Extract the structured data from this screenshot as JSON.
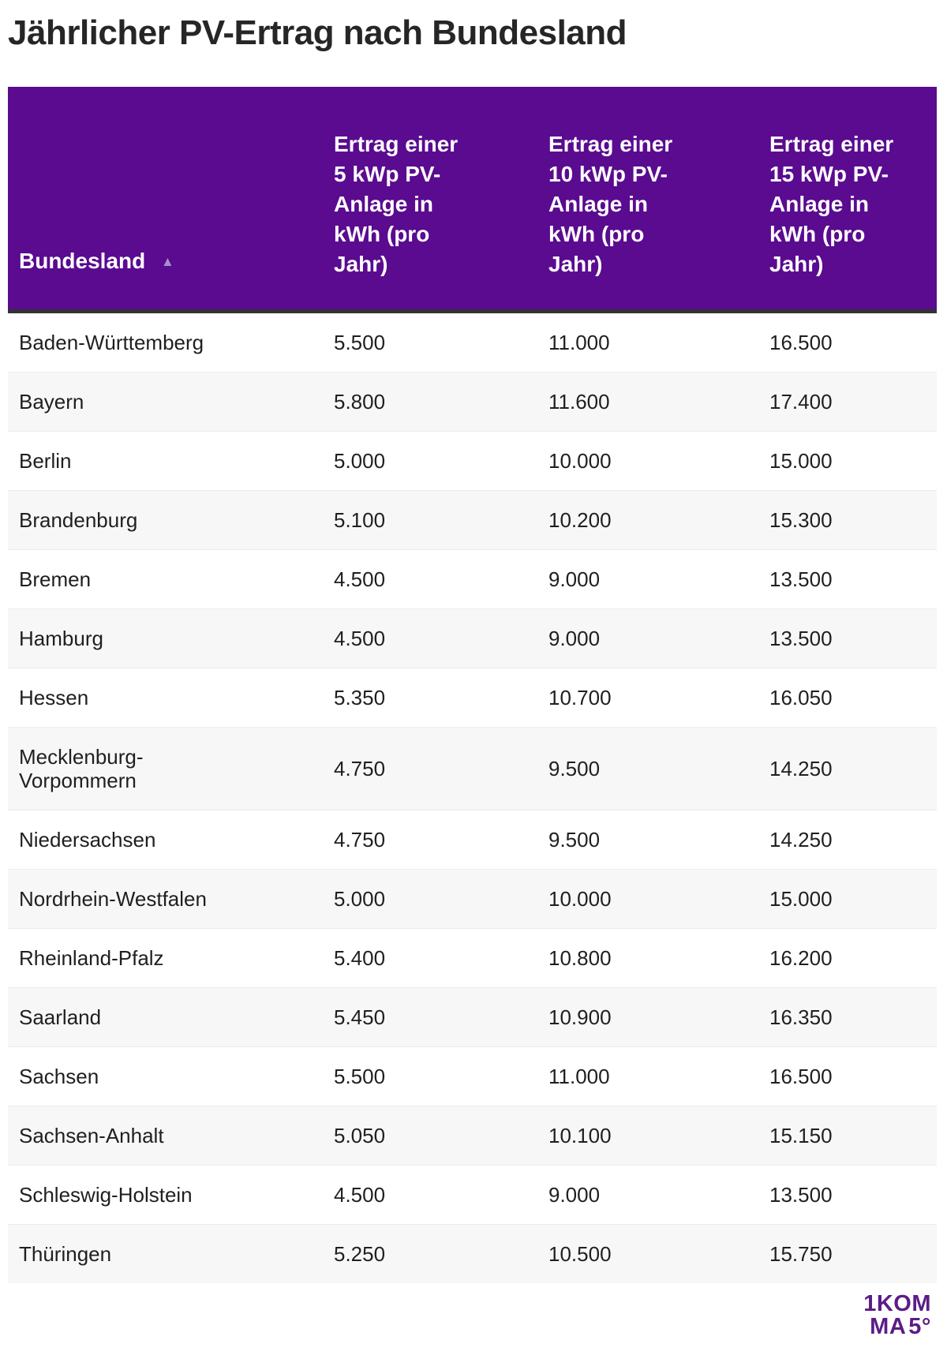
{
  "title": "Jährlicher PV-Ertrag nach Bundesland",
  "table": {
    "columns": [
      {
        "label": "Bundesland",
        "sort_indicator": "▲"
      },
      {
        "label": "Ertrag einer\n5 kWp PV-\nAnlage in\nkWh (pro\nJahr)"
      },
      {
        "label": "Ertrag einer\n10 kWp PV-\nAnlage in\nkWh (pro\nJahr)"
      },
      {
        "label": "Ertrag einer\n15 kWp PV-\nAnlage in\nkWh (pro\nJahr)"
      }
    ],
    "rows": [
      {
        "bundesland": "Baden-Württemberg",
        "kwp5": "5.500",
        "kwp10": "11.000",
        "kwp15": "16.500"
      },
      {
        "bundesland": "Bayern",
        "kwp5": "5.800",
        "kwp10": "11.600",
        "kwp15": "17.400"
      },
      {
        "bundesland": "Berlin",
        "kwp5": "5.000",
        "kwp10": "10.000",
        "kwp15": "15.000"
      },
      {
        "bundesland": "Brandenburg",
        "kwp5": "5.100",
        "kwp10": "10.200",
        "kwp15": "15.300"
      },
      {
        "bundesland": "Bremen",
        "kwp5": "4.500",
        "kwp10": "9.000",
        "kwp15": "13.500"
      },
      {
        "bundesland": "Hamburg",
        "kwp5": "4.500",
        "kwp10": "9.000",
        "kwp15": "13.500"
      },
      {
        "bundesland": "Hessen",
        "kwp5": "5.350",
        "kwp10": "10.700",
        "kwp15": "16.050"
      },
      {
        "bundesland": "Mecklenburg-\nVorpommern",
        "kwp5": "4.750",
        "kwp10": "9.500",
        "kwp15": "14.250"
      },
      {
        "bundesland": "Niedersachsen",
        "kwp5": "4.750",
        "kwp10": "9.500",
        "kwp15": "14.250"
      },
      {
        "bundesland": "Nordrhein-Westfalen",
        "kwp5": "5.000",
        "kwp10": "10.000",
        "kwp15": "15.000"
      },
      {
        "bundesland": "Rheinland-Pfalz",
        "kwp5": "5.400",
        "kwp10": "10.800",
        "kwp15": "16.200"
      },
      {
        "bundesland": "Saarland",
        "kwp5": "5.450",
        "kwp10": "10.900",
        "kwp15": "16.350"
      },
      {
        "bundesland": "Sachsen",
        "kwp5": "5.500",
        "kwp10": "11.000",
        "kwp15": "16.500"
      },
      {
        "bundesland": "Sachsen-Anhalt",
        "kwp5": "5.050",
        "kwp10": "10.100",
        "kwp15": "15.150"
      },
      {
        "bundesland": "Schleswig-Holstein",
        "kwp5": "4.500",
        "kwp10": "9.000",
        "kwp15": "13.500"
      },
      {
        "bundesland": "Thüringen",
        "kwp5": "5.250",
        "kwp10": "10.500",
        "kwp15": "15.750"
      }
    ]
  },
  "chart_data": {
    "type": "table",
    "title": "Jährlicher PV-Ertrag nach Bundesland",
    "columns": [
      "Bundesland",
      "Ertrag einer 5 kWp PV-Anlage in kWh (pro Jahr)",
      "Ertrag einer 10 kWp PV-Anlage in kWh (pro Jahr)",
      "Ertrag einer 15 kWp PV-Anlage in kWh (pro Jahr)"
    ],
    "rows": [
      [
        "Baden-Württemberg",
        5500,
        11000,
        16500
      ],
      [
        "Bayern",
        5800,
        11600,
        17400
      ],
      [
        "Berlin",
        5000,
        10000,
        15000
      ],
      [
        "Brandenburg",
        5100,
        10200,
        15300
      ],
      [
        "Bremen",
        4500,
        9000,
        13500
      ],
      [
        "Hamburg",
        4500,
        9000,
        13500
      ],
      [
        "Hessen",
        5350,
        10700,
        16050
      ],
      [
        "Mecklenburg-Vorpommern",
        4750,
        9500,
        14250
      ],
      [
        "Niedersachsen",
        4750,
        9500,
        14250
      ],
      [
        "Nordrhein-Westfalen",
        5000,
        10000,
        15000
      ],
      [
        "Rheinland-Pfalz",
        5400,
        10800,
        16200
      ],
      [
        "Saarland",
        5450,
        10900,
        16350
      ],
      [
        "Sachsen",
        5500,
        11000,
        16500
      ],
      [
        "Sachsen-Anhalt",
        5050,
        10100,
        15150
      ],
      [
        "Schleswig-Holstein",
        4500,
        9000,
        13500
      ],
      [
        "Thüringen",
        5250,
        10500,
        15750
      ]
    ],
    "sort": {
      "column": "Bundesland",
      "direction": "ascending"
    }
  },
  "logo": {
    "line1_thin": "1",
    "line1_bold": "KOM",
    "line2_bold": "MA",
    "line2_thin": "5°"
  },
  "colors": {
    "header_bg": "#5A0B90",
    "header_text": "#FFFFFF",
    "header_underline": "#333333",
    "sort_icon": "#A78FC8",
    "row_alt_bg": "#F7F7F7",
    "title_text": "#262626",
    "body_text": "#1F1F1F",
    "logo_purple": "#5C1C87"
  }
}
